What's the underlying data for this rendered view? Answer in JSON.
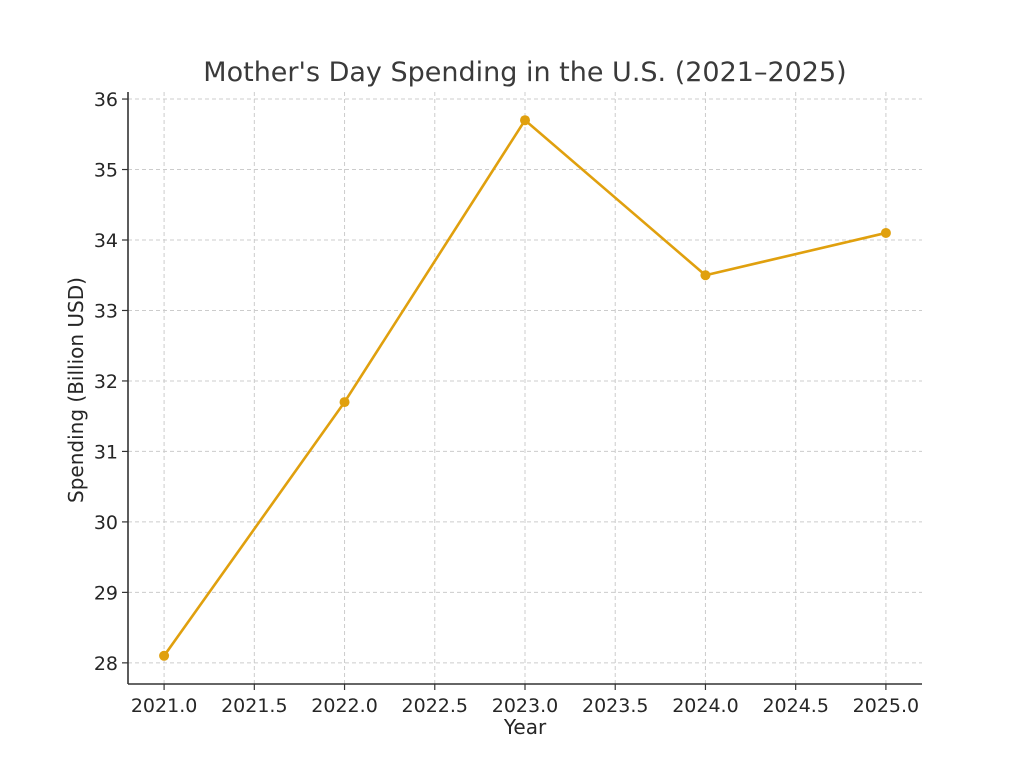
{
  "chart_data": {
    "type": "line",
    "title": "Mother's Day Spending in the U.S. (2021–2025)",
    "xlabel": "Year",
    "ylabel": "Spending (Billion USD)",
    "xlim": [
      2020.8,
      2025.2
    ],
    "ylim": [
      27.7,
      36.1
    ],
    "xticks": [
      2021.0,
      2021.5,
      2022.0,
      2022.5,
      2023.0,
      2023.5,
      2024.0,
      2024.5,
      2025.0
    ],
    "xtick_labels": [
      "2021.0",
      "2021.5",
      "2022.0",
      "2022.5",
      "2023.0",
      "2023.5",
      "2024.0",
      "2024.5",
      "2025.0"
    ],
    "yticks": [
      28,
      29,
      30,
      31,
      32,
      33,
      34,
      35,
      36
    ],
    "ytick_labels": [
      "28",
      "29",
      "30",
      "31",
      "32",
      "33",
      "34",
      "35",
      "36"
    ],
    "grid": true,
    "series": [
      {
        "x": [
          2021,
          2022,
          2023,
          2024,
          2025
        ],
        "y": [
          28.1,
          31.7,
          35.7,
          33.5,
          34.1
        ],
        "color": "#E0A00E",
        "marker": "circle"
      }
    ]
  }
}
